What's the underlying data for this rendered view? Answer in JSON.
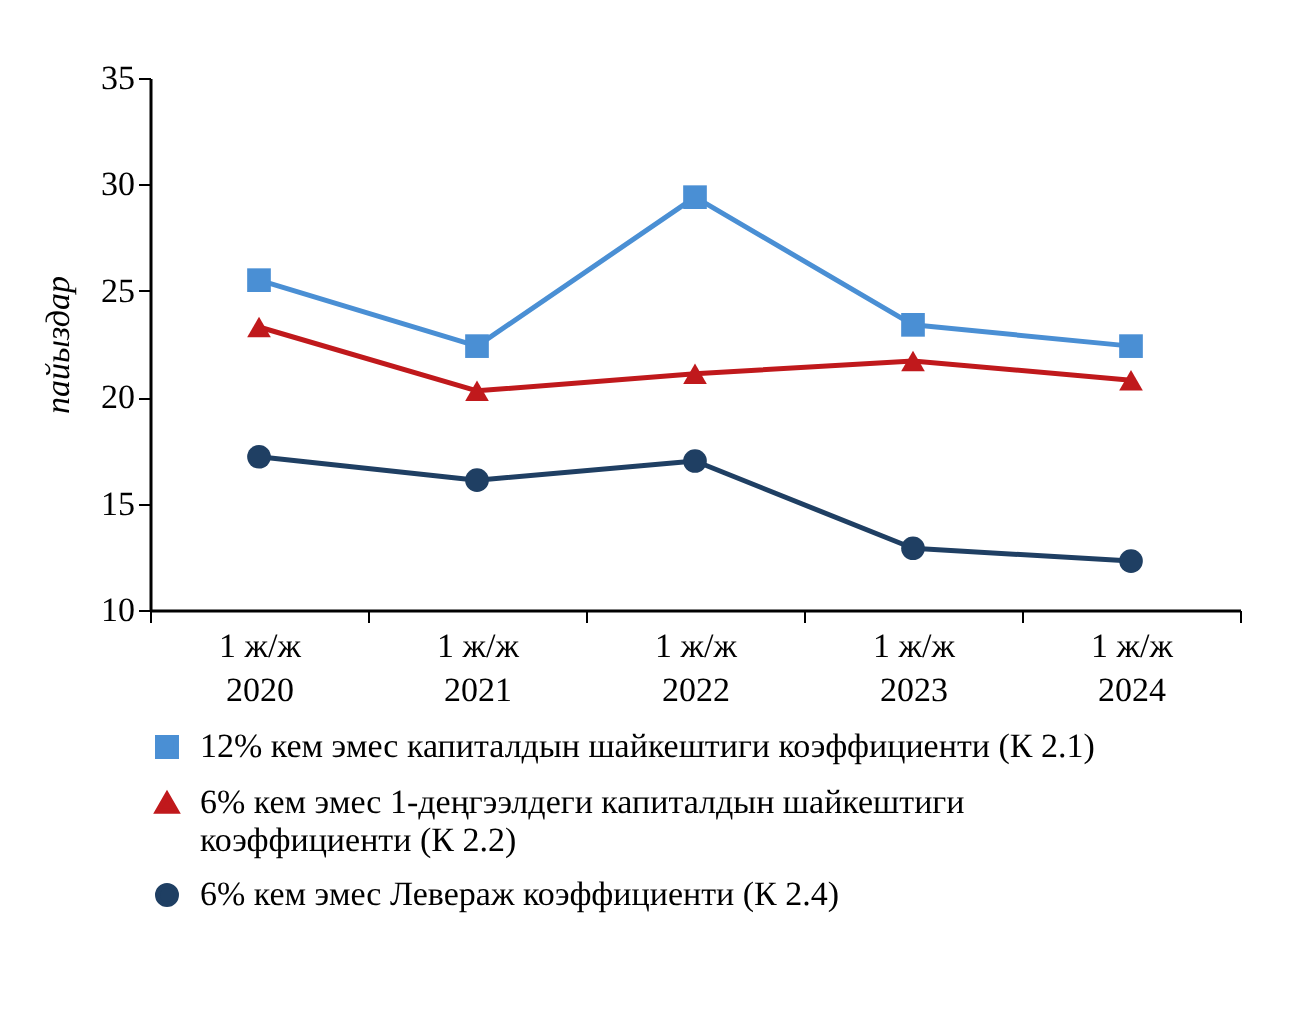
{
  "chart_data": {
    "type": "line",
    "ylabel": "пайыздар",
    "categories": [
      "1 ж/ж\n2020",
      "1 ж/ж\n2021",
      "1 ж/ж\n2022",
      "1 ж/ж\n2023",
      "1 ж/ж\n2024"
    ],
    "series": [
      {
        "name": "12% кем эмес капиталдын шайкештиги коэффициенти (К 2.1)",
        "color": "#4a8fd4",
        "marker": "square",
        "values": [
          25.5,
          22.4,
          29.4,
          23.4,
          22.4
        ]
      },
      {
        "name": "6% кем эмес 1-деңгээлдеги капиталдын шайкештиги коэффициенти (К 2.2)",
        "color": "#c0191c",
        "marker": "triangle",
        "values": [
          23.3,
          20.3,
          21.1,
          21.7,
          20.8
        ]
      },
      {
        "name": "6% кем эмес Левераж коэффициенти (К 2.4)",
        "color": "#1f3f63",
        "marker": "circle",
        "values": [
          17.2,
          16.1,
          17.0,
          12.9,
          12.3
        ]
      }
    ],
    "ylim": [
      10,
      35
    ],
    "yticks": [
      10,
      15,
      20,
      25,
      30,
      35
    ],
    "grid": false,
    "legend": "bottom"
  }
}
